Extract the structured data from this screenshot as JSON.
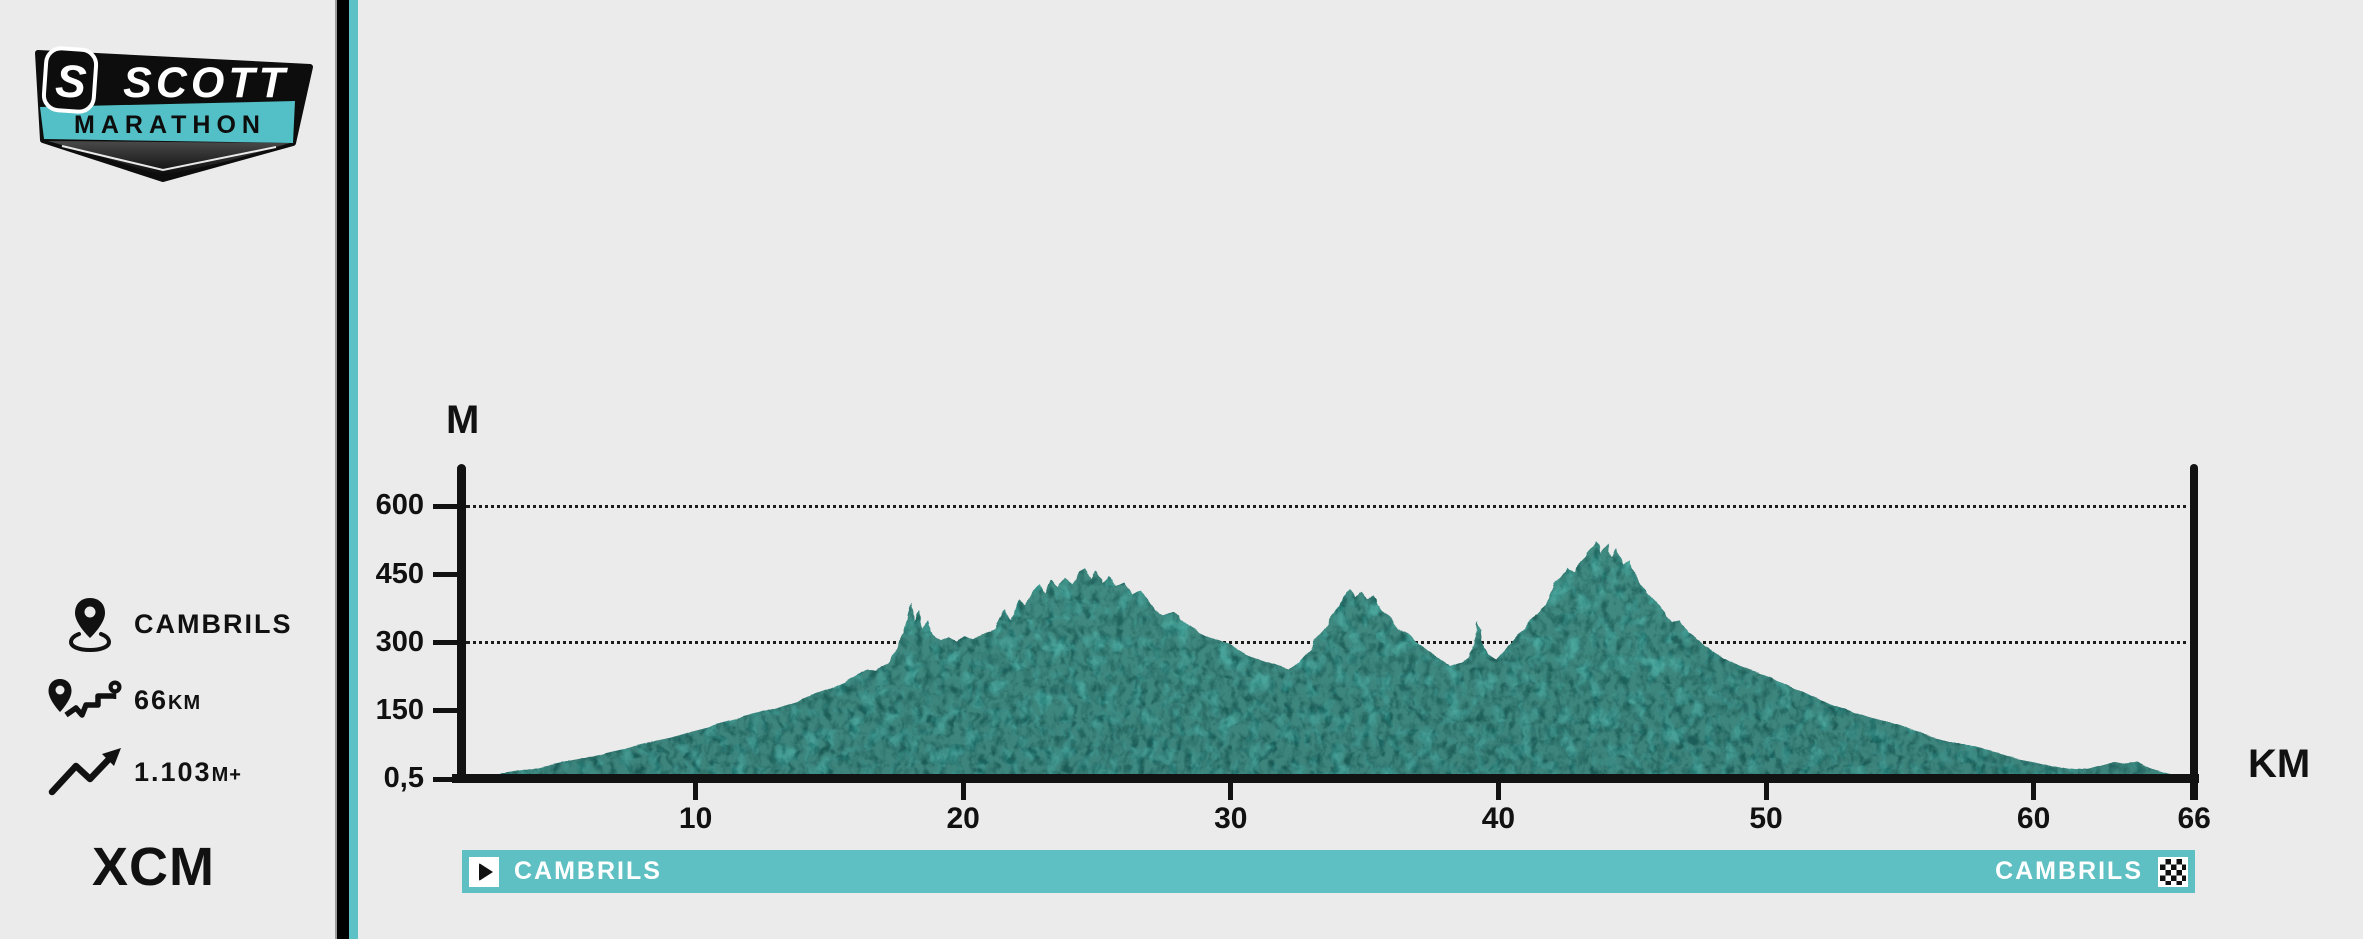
{
  "colors": {
    "background": "#ebebeb",
    "axis": "#121212",
    "mountain": "#2f8e88",
    "mountain_top": "#3a9b92",
    "mountain_bottom": "#2b837e",
    "bar_teal": "#5fc0c3",
    "divider_teal": "#5cc2c6",
    "logo_teal": "#52c0c6",
    "text_dark": "#111111"
  },
  "sidebar": {
    "logo": {
      "s_mark": "S",
      "brand": "SCOTT",
      "series": "MARATHON"
    },
    "stats": [
      {
        "icon": "location-pin-icon",
        "value": "CAMBRILS",
        "unit": ""
      },
      {
        "icon": "route-distance-icon",
        "value": "66",
        "unit": "KM"
      },
      {
        "icon": "elevation-gain-icon",
        "value": "1.103",
        "unit": "M+"
      }
    ],
    "discipline": "XCM"
  },
  "race_bar": {
    "start_label": "CAMBRILS",
    "finish_label": "CAMBRILS"
  },
  "chart_data": {
    "type": "area",
    "title": "",
    "xlabel": "KM",
    "ylabel": "M",
    "xlim": [
      0,
      66
    ],
    "ylim": [
      0,
      690
    ],
    "grid": "horizontal dotted lines at 300 and 600 only",
    "legend": "none",
    "x_ticks": [
      {
        "value": 10,
        "label": "10"
      },
      {
        "value": 20,
        "label": "20"
      },
      {
        "value": 30,
        "label": "30"
      },
      {
        "value": 40,
        "label": "40"
      },
      {
        "value": 50,
        "label": "50"
      },
      {
        "value": 60,
        "label": "60"
      },
      {
        "value": 66,
        "label": "66"
      }
    ],
    "y_ticks": [
      {
        "value": 0,
        "label": "0,5"
      },
      {
        "value": 150,
        "label": "150"
      },
      {
        "value": 300,
        "label": "300"
      },
      {
        "value": 450,
        "label": "450"
      },
      {
        "value": 600,
        "label": "600"
      }
    ],
    "gridline_values": [
      300,
      600
    ],
    "profile_km_m": [
      [
        1.3,
        2
      ],
      [
        2,
        8
      ],
      [
        3,
        16
      ],
      [
        4,
        26
      ],
      [
        5,
        38
      ],
      [
        6,
        50
      ],
      [
        7,
        63
      ],
      [
        8,
        77
      ],
      [
        9,
        91
      ],
      [
        10,
        106
      ],
      [
        11,
        121
      ],
      [
        12,
        138
      ],
      [
        13,
        155
      ],
      [
        14,
        175
      ],
      [
        15,
        196
      ],
      [
        15.5,
        210
      ],
      [
        16,
        228
      ],
      [
        16.4,
        242
      ],
      [
        16.7,
        238
      ],
      [
        17,
        252
      ],
      [
        17.3,
        262
      ],
      [
        17.6,
        300
      ],
      [
        17.85,
        335
      ],
      [
        18.05,
        393
      ],
      [
        18.2,
        348
      ],
      [
        18.35,
        372
      ],
      [
        18.5,
        332
      ],
      [
        18.7,
        352
      ],
      [
        18.9,
        315
      ],
      [
        19.2,
        302
      ],
      [
        19.5,
        310
      ],
      [
        19.8,
        300
      ],
      [
        20.1,
        316
      ],
      [
        20.4,
        308
      ],
      [
        20.8,
        322
      ],
      [
        21.2,
        330
      ],
      [
        21.6,
        372
      ],
      [
        21.8,
        350
      ],
      [
        22.1,
        395
      ],
      [
        22.3,
        380
      ],
      [
        22.6,
        412
      ],
      [
        22.85,
        428
      ],
      [
        23.05,
        405
      ],
      [
        23.3,
        438
      ],
      [
        23.55,
        420
      ],
      [
        23.8,
        444
      ],
      [
        24.1,
        430
      ],
      [
        24.35,
        455
      ],
      [
        24.55,
        462
      ],
      [
        24.75,
        442
      ],
      [
        24.95,
        458
      ],
      [
        25.2,
        435
      ],
      [
        25.45,
        448
      ],
      [
        25.7,
        428
      ],
      [
        26,
        436
      ],
      [
        26.3,
        405
      ],
      [
        26.6,
        415
      ],
      [
        26.9,
        390
      ],
      [
        27.2,
        370
      ],
      [
        27.5,
        358
      ],
      [
        27.9,
        366
      ],
      [
        28.3,
        342
      ],
      [
        28.8,
        325
      ],
      [
        29.4,
        308
      ],
      [
        30,
        294
      ],
      [
        30.6,
        272
      ],
      [
        31.2,
        258
      ],
      [
        31.8,
        247
      ],
      [
        32.2,
        240
      ],
      [
        32.5,
        256
      ],
      [
        32.8,
        275
      ],
      [
        33.1,
        300
      ],
      [
        33.4,
        326
      ],
      [
        33.7,
        352
      ],
      [
        34,
        380
      ],
      [
        34.2,
        402
      ],
      [
        34.45,
        418
      ],
      [
        34.65,
        398
      ],
      [
        34.85,
        410
      ],
      [
        35.1,
        392
      ],
      [
        35.35,
        401
      ],
      [
        35.6,
        378
      ],
      [
        35.9,
        355
      ],
      [
        36.2,
        330
      ],
      [
        36.6,
        322
      ],
      [
        37,
        302
      ],
      [
        37.4,
        286
      ],
      [
        37.8,
        266
      ],
      [
        38.2,
        250
      ],
      [
        38.6,
        260
      ],
      [
        38.9,
        272
      ],
      [
        39.1,
        305
      ],
      [
        39.22,
        351
      ],
      [
        39.35,
        302
      ],
      [
        39.6,
        272
      ],
      [
        39.9,
        262
      ],
      [
        40.3,
        288
      ],
      [
        40.7,
        316
      ],
      [
        41.1,
        342
      ],
      [
        41.5,
        362
      ],
      [
        41.9,
        398
      ],
      [
        42.1,
        432
      ],
      [
        42.35,
        448
      ],
      [
        42.6,
        466
      ],
      [
        42.85,
        455
      ],
      [
        43.05,
        480
      ],
      [
        43.25,
        492
      ],
      [
        43.45,
        506
      ],
      [
        43.65,
        520
      ],
      [
        43.85,
        497
      ],
      [
        44.05,
        515
      ],
      [
        44.25,
        490
      ],
      [
        44.45,
        506
      ],
      [
        44.65,
        472
      ],
      [
        44.85,
        482
      ],
      [
        45.05,
        458
      ],
      [
        45.3,
        432
      ],
      [
        45.6,
        408
      ],
      [
        45.9,
        390
      ],
      [
        46.2,
        362
      ],
      [
        46.45,
        342
      ],
      [
        46.75,
        348
      ],
      [
        47.1,
        322
      ],
      [
        47.5,
        305
      ],
      [
        47.9,
        288
      ],
      [
        48.4,
        268
      ],
      [
        49,
        250
      ],
      [
        49.6,
        236
      ],
      [
        50.3,
        220
      ],
      [
        51,
        200
      ],
      [
        52,
        176
      ],
      [
        53,
        153
      ],
      [
        54,
        133
      ],
      [
        55,
        115
      ],
      [
        56,
        98
      ],
      [
        57,
        82
      ],
      [
        58,
        66
      ],
      [
        59,
        52
      ],
      [
        60,
        41
      ],
      [
        60.7,
        31
      ],
      [
        61.4,
        23
      ],
      [
        62,
        20
      ],
      [
        62.5,
        28
      ],
      [
        63,
        36
      ],
      [
        63.4,
        31
      ],
      [
        63.9,
        33
      ],
      [
        64.4,
        23
      ],
      [
        65,
        13
      ],
      [
        65.5,
        8
      ],
      [
        66,
        3
      ]
    ]
  }
}
